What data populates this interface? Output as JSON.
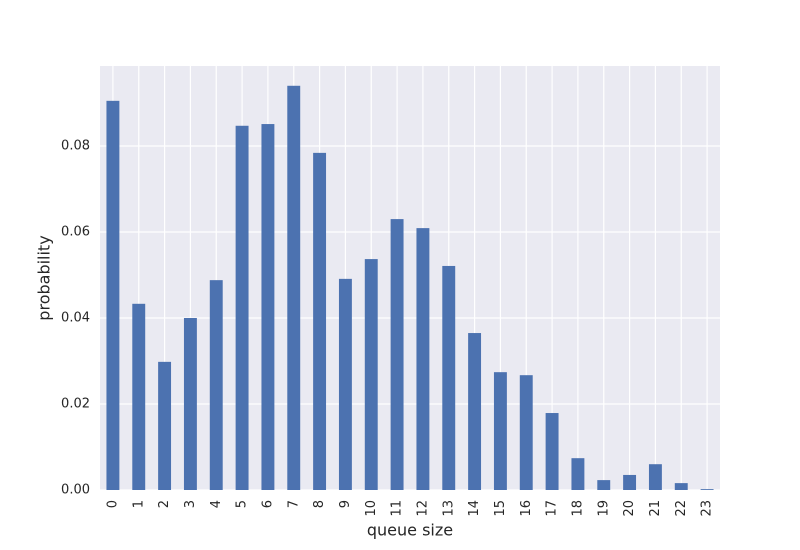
{
  "chart_data": {
    "type": "bar",
    "xlabel": "queue size",
    "ylabel": "probability",
    "categories": [
      "0",
      "1",
      "2",
      "3",
      "4",
      "5",
      "6",
      "7",
      "8",
      "9",
      "10",
      "11",
      "12",
      "13",
      "14",
      "15",
      "16",
      "17",
      "18",
      "19",
      "20",
      "21",
      "22",
      "23"
    ],
    "values": [
      0.0905,
      0.0433,
      0.0298,
      0.04,
      0.0488,
      0.0847,
      0.0851,
      0.094,
      0.0784,
      0.0491,
      0.0537,
      0.063,
      0.0609,
      0.0521,
      0.0365,
      0.0274,
      0.0267,
      0.0179,
      0.0074,
      0.0023,
      0.0035,
      0.006,
      0.0016,
      0.0002
    ],
    "color": "#4c72b0",
    "ylim": [
      0,
      0.0986
    ],
    "yticks": [
      {
        "value": 0,
        "label": "0.00"
      },
      {
        "value": 0.02,
        "label": "0.02"
      },
      {
        "value": 0.04,
        "label": "0.04"
      },
      {
        "value": 0.06,
        "label": "0.06"
      },
      {
        "value": 0.08,
        "label": "0.08"
      }
    ],
    "grid": true
  }
}
